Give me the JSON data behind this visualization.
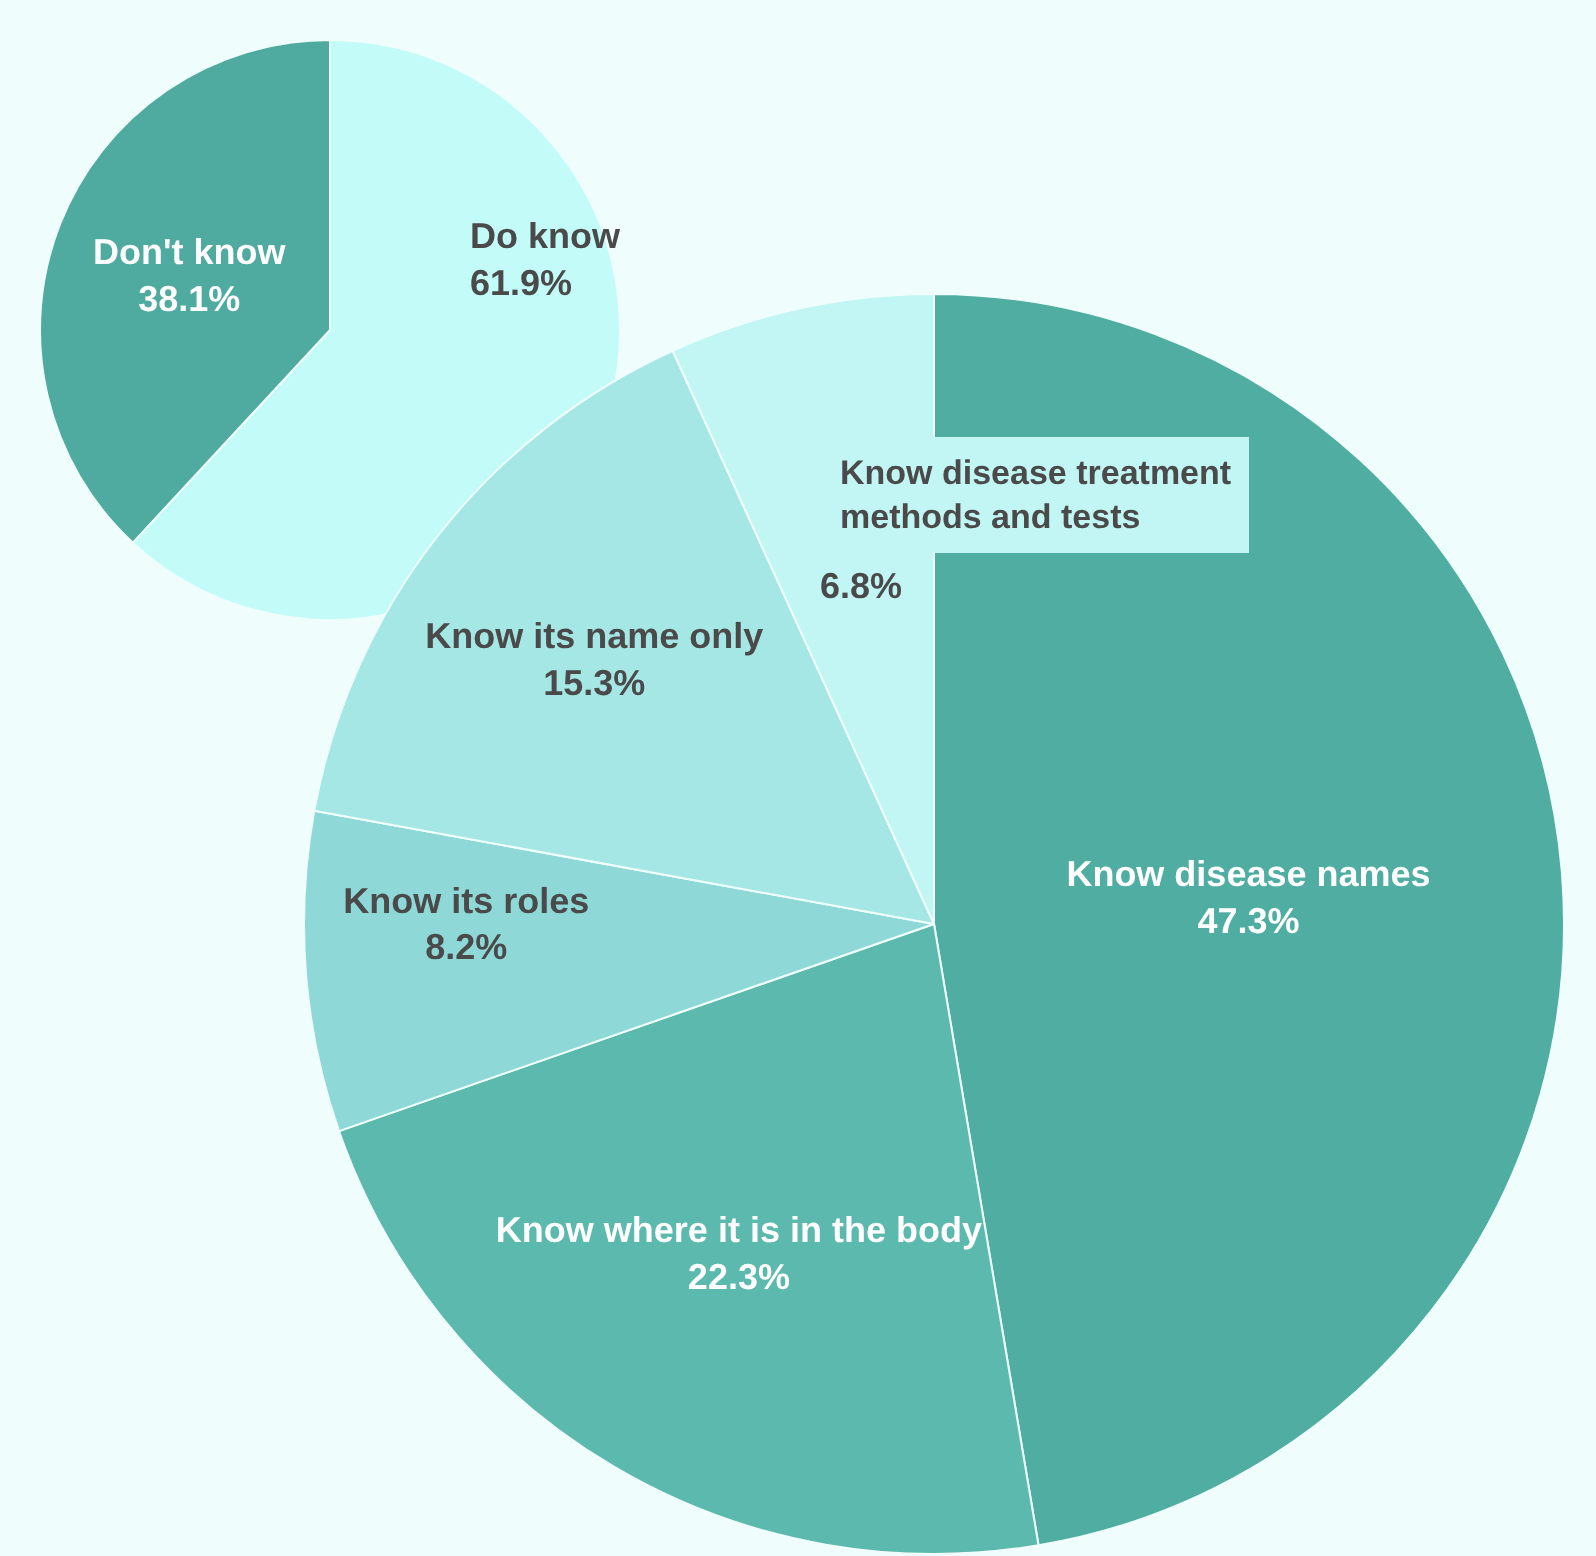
{
  "chart_data": [
    {
      "type": "pie",
      "categories": [
        "Do know",
        "Don't know"
      ],
      "values": [
        61.9,
        38.1
      ],
      "colors": [
        "#c2fbf8",
        "#4fab9f"
      ],
      "value_labels": [
        "61.9%",
        "38.1%"
      ],
      "data_labels": true,
      "legend": false
    },
    {
      "type": "pie",
      "categories": [
        "Know disease names",
        "Know where it is in the body",
        "Know its roles",
        "Know its name only",
        "Know disease treatment methods and tests"
      ],
      "values": [
        47.3,
        22.3,
        8.2,
        15.3,
        6.8
      ],
      "colors": [
        "#4fada1",
        "#5cb9ad",
        "#8fd8d8",
        "#a5e7e5",
        "#c2f6f4"
      ],
      "value_labels": [
        "47.3%",
        "22.3%",
        "8.2%",
        "15.3%",
        "6.8%"
      ],
      "data_labels": true,
      "legend": false
    }
  ]
}
